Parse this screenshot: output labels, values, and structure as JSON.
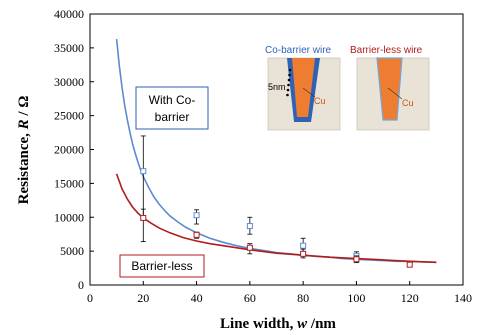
{
  "chart_data": {
    "type": "scatter",
    "xlabel_prefix": "Line width, ",
    "xlabel_var": "w",
    "xlabel_suffix": " /nm",
    "ylabel_prefix": "Resistance, ",
    "ylabel_var": "R",
    "ylabel_suffix": " / Ω",
    "xlim": [
      0,
      140
    ],
    "ylim": [
      0,
      40000
    ],
    "x_ticks": [
      0,
      20,
      40,
      60,
      80,
      100,
      120,
      140
    ],
    "y_ticks": [
      0,
      5000,
      10000,
      15000,
      20000,
      25000,
      30000,
      35000,
      40000
    ],
    "series": [
      {
        "name": "With Co-barrier",
        "color": "#5b8bd0",
        "marker": "square",
        "x": [
          20,
          40,
          60,
          80,
          100
        ],
        "y": [
          16800,
          10300,
          8700,
          5800,
          4300
        ],
        "err_low": [
          9600,
          9000,
          7500,
          4900,
          3800
        ],
        "err_high": [
          22000,
          11100,
          10000,
          6900,
          4900
        ],
        "fit_x": [
          10,
          11,
          12,
          13,
          14,
          15,
          16,
          17,
          18,
          19,
          20,
          22,
          24,
          26,
          28,
          30,
          33,
          36,
          40,
          45,
          50,
          55,
          60,
          65,
          70,
          75,
          80,
          85,
          90,
          95,
          100,
          105,
          110,
          115,
          120,
          125,
          130
        ],
        "fit_y": [
          36300,
          32400,
          29200,
          26600,
          24400,
          22500,
          20800,
          19400,
          18100,
          17000,
          16000,
          14400,
          13000,
          11900,
          11000,
          10200,
          9300,
          8500,
          7700,
          6900,
          6300,
          5800,
          5400,
          5100,
          4800,
          4600,
          4400,
          4200,
          4100,
          3900,
          3800,
          3700,
          3600,
          3500,
          3500,
          3400,
          3350
        ]
      },
      {
        "name": "Barrier-less",
        "color": "#b01c1c",
        "marker": "square",
        "x": [
          20,
          40,
          60,
          80,
          100,
          120
        ],
        "y": [
          9900,
          7400,
          5500,
          4600,
          3800,
          3000
        ],
        "err_low": [
          6400,
          6900,
          4600,
          4000,
          3300,
          2800
        ],
        "err_high": [
          11200,
          7800,
          6100,
          5300,
          4300,
          3200
        ],
        "fit_x": [
          10,
          12,
          14,
          16,
          18,
          20,
          23,
          26,
          30,
          35,
          40,
          45,
          50,
          60,
          70,
          80,
          90,
          100,
          110,
          120,
          130
        ],
        "fit_y": [
          16400,
          14200,
          12700,
          11500,
          10600,
          9900,
          9100,
          8400,
          7700,
          7000,
          6500,
          6100,
          5800,
          5200,
          4700,
          4400,
          4100,
          3900,
          3700,
          3500,
          3350
        ]
      }
    ]
  },
  "callouts": {
    "co_barrier_line1": "With Co-",
    "co_barrier_line2": "barrier",
    "barrier_less": "Barrier-less"
  },
  "inset": {
    "left_title": "Co-barrier wire",
    "left_title_color": "#2f62b5",
    "right_title": "Barrier-less wire",
    "right_title_color": "#b01c1c",
    "thickness_label": "5nm",
    "cu_label_left": "Cu",
    "cu_label_right": "Cu",
    "copper_color": "#ee7d31",
    "barrier_color": "#2f62b5",
    "cu_label_color": "#c55a11",
    "background_color": "#e9e2d6"
  }
}
